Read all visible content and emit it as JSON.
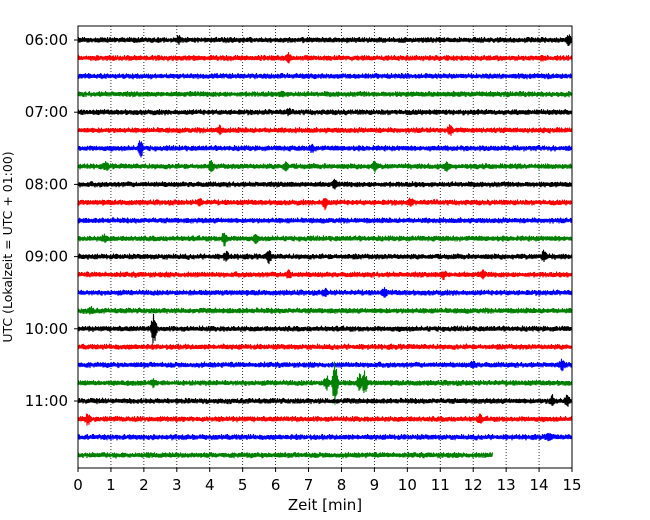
{
  "chart_data": {
    "type": "line",
    "title": "",
    "xlabel": "Zeit  [min]",
    "ylabel": "UTC (Lokalzeit = UTC + 01:00)",
    "xlim": [
      0,
      15
    ],
    "x_ticks": [
      "0",
      "1",
      "2",
      "3",
      "4",
      "5",
      "6",
      "7",
      "8",
      "9",
      "10",
      "11",
      "12",
      "13",
      "14",
      "15"
    ],
    "y_ticks": [
      "06:00",
      "07:00",
      "08:00",
      "09:00",
      "10:00",
      "11:00"
    ],
    "grid": "vertical dotted lines at each minute",
    "trace_interval_minutes": 15,
    "start_time": "06:00",
    "last_trace_end_min": 12.6,
    "colors": [
      "#000000",
      "#ff0000",
      "#0000ff",
      "#008000"
    ],
    "traces": [
      {
        "start": "06:00",
        "color": "#000000",
        "events": [
          {
            "t": 3.05,
            "amp": 4
          },
          {
            "t": 14.9,
            "amp": 5
          }
        ]
      },
      {
        "start": "06:15",
        "color": "#ff0000",
        "events": [
          {
            "t": 6.4,
            "amp": 5
          },
          {
            "t": 14.1,
            "amp": 3
          }
        ]
      },
      {
        "start": "06:30",
        "color": "#0000ff",
        "events": []
      },
      {
        "start": "06:45",
        "color": "#008000",
        "events": [
          {
            "t": 6.2,
            "amp": 3
          }
        ]
      },
      {
        "start": "07:00",
        "color": "#000000",
        "events": [
          {
            "t": 6.4,
            "amp": 3
          }
        ]
      },
      {
        "start": "07:15",
        "color": "#ff0000",
        "events": [
          {
            "t": 4.3,
            "amp": 4
          },
          {
            "t": 11.3,
            "amp": 5
          }
        ]
      },
      {
        "start": "07:30",
        "color": "#0000ff",
        "events": [
          {
            "t": 1.9,
            "amp": 9
          },
          {
            "t": 7.1,
            "amp": 4
          }
        ]
      },
      {
        "start": "07:45",
        "color": "#008000",
        "events": [
          {
            "t": 0.85,
            "amp": 4
          },
          {
            "t": 4.05,
            "amp": 5
          },
          {
            "t": 6.3,
            "amp": 5
          },
          {
            "t": 9.0,
            "amp": 5
          },
          {
            "t": 11.2,
            "amp": 5
          }
        ]
      },
      {
        "start": "08:00",
        "color": "#000000",
        "events": [
          {
            "t": 7.8,
            "amp": 4
          }
        ]
      },
      {
        "start": "08:15",
        "color": "#ff0000",
        "events": [
          {
            "t": 3.7,
            "amp": 4
          },
          {
            "t": 7.5,
            "amp": 6
          },
          {
            "t": 10.1,
            "amp": 4
          }
        ]
      },
      {
        "start": "08:30",
        "color": "#0000ff",
        "events": []
      },
      {
        "start": "08:45",
        "color": "#008000",
        "events": [
          {
            "t": 0.8,
            "amp": 4
          },
          {
            "t": 4.45,
            "amp": 7
          },
          {
            "t": 5.4,
            "amp": 4
          }
        ]
      },
      {
        "start": "09:00",
        "color": "#000000",
        "events": [
          {
            "t": 4.5,
            "amp": 5
          },
          {
            "t": 5.8,
            "amp": 6
          },
          {
            "t": 14.15,
            "amp": 6
          }
        ]
      },
      {
        "start": "09:15",
        "color": "#ff0000",
        "events": [
          {
            "t": 6.4,
            "amp": 4
          },
          {
            "t": 11.1,
            "amp": 4
          },
          {
            "t": 12.3,
            "amp": 4
          }
        ]
      },
      {
        "start": "09:30",
        "color": "#0000ff",
        "events": [
          {
            "t": 7.5,
            "amp": 4
          },
          {
            "t": 9.3,
            "amp": 4
          }
        ]
      },
      {
        "start": "09:45",
        "color": "#008000",
        "events": [
          {
            "t": 0.4,
            "amp": 3
          }
        ]
      },
      {
        "start": "10:00",
        "color": "#000000",
        "events": [
          {
            "t": 2.3,
            "amp": 16
          }
        ]
      },
      {
        "start": "10:15",
        "color": "#ff0000",
        "events": []
      },
      {
        "start": "10:30",
        "color": "#0000ff",
        "events": [
          {
            "t": 12.0,
            "amp": 4
          },
          {
            "t": 14.7,
            "amp": 5
          }
        ]
      },
      {
        "start": "10:45",
        "color": "#008000",
        "events": [
          {
            "t": 2.3,
            "amp": 4
          },
          {
            "t": 7.55,
            "amp": 7
          },
          {
            "t": 7.8,
            "amp": 22
          },
          {
            "t": 8.55,
            "amp": 9
          },
          {
            "t": 8.7,
            "amp": 12
          }
        ]
      },
      {
        "start": "11:00",
        "color": "#000000",
        "events": [
          {
            "t": 14.4,
            "amp": 6
          },
          {
            "t": 14.85,
            "amp": 5
          }
        ]
      },
      {
        "start": "11:15",
        "color": "#ff0000",
        "events": [
          {
            "t": 0.3,
            "amp": 6
          },
          {
            "t": 12.2,
            "amp": 4
          }
        ]
      },
      {
        "start": "11:30",
        "color": "#0000ff",
        "events": [
          {
            "t": 14.3,
            "amp": 4
          }
        ]
      },
      {
        "start": "11:45",
        "color": "#008000",
        "events": []
      }
    ]
  }
}
